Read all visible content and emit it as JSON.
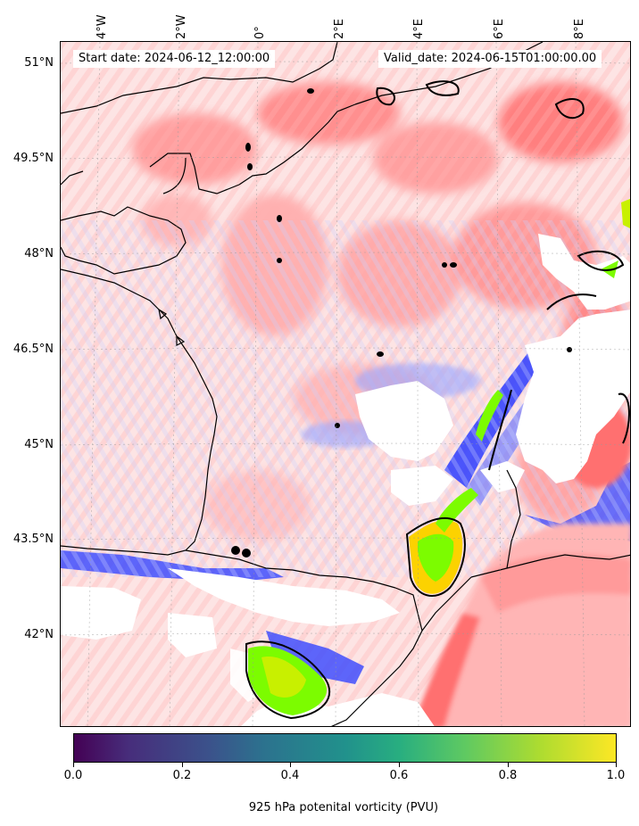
{
  "header": {
    "start_date": "Start date: 2024-06-12_12:00:00",
    "valid_date": "Valid_date: 2024-06-15T01:00:00.00"
  },
  "axes": {
    "lon_labels": [
      "4°W",
      "2°W",
      "0°",
      "2°E",
      "4°E",
      "6°E",
      "8°E"
    ],
    "lat_labels": [
      "51°N",
      "49.5°N",
      "48°N",
      "46.5°N",
      "45°N",
      "43.5°N",
      "42°N"
    ]
  },
  "colorbar": {
    "min": 0.0,
    "max": 1.0,
    "tick_labels": [
      "0.0",
      "0.2",
      "0.4",
      "0.6",
      "0.8",
      "1.0"
    ],
    "label": "925 hPa potenital vorticity (PVU)",
    "colormap": "viridis",
    "colors": [
      "#440154",
      "#3b528b",
      "#21918c",
      "#5ec962",
      "#fde725"
    ]
  },
  "map": {
    "region": "France / Western Europe",
    "colors": {
      "background": "#fde4e4",
      "positive": "#ff6b6b",
      "negative": "#2b3cff",
      "high": "#7cfc00",
      "coast": "#000000"
    }
  }
}
